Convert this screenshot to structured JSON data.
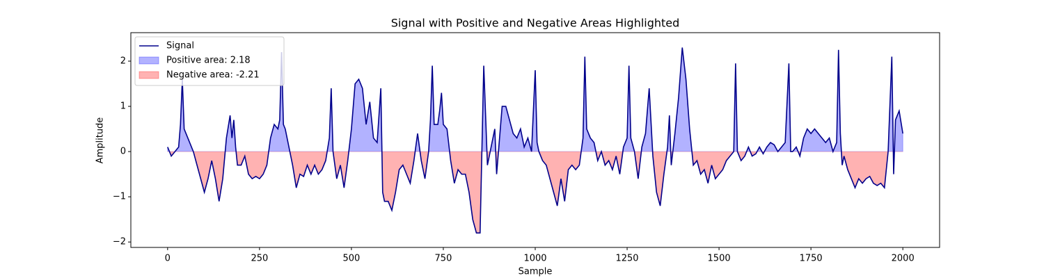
{
  "chart_data": {
    "type": "line",
    "title": "Signal with Positive and Negative Areas Highlighted",
    "x_label": "Sample",
    "y_label": "Amplitude",
    "xlim": [
      -100,
      2100
    ],
    "ylim": [
      -2.12,
      2.63
    ],
    "xticks": [
      0,
      250,
      500,
      750,
      1000,
      1250,
      1500,
      1750,
      2000
    ],
    "yticks": [
      {
        "value": -2,
        "label": "−2"
      },
      {
        "value": -1,
        "label": "−1"
      },
      0,
      1,
      2
    ],
    "legend": "upper left",
    "series": [
      {
        "name": "Signal",
        "color": "#00008b",
        "x": [
          0,
          10,
          20,
          30,
          35,
          40,
          45,
          50,
          60,
          70,
          80,
          90,
          100,
          110,
          120,
          130,
          140,
          150,
          160,
          170,
          175,
          180,
          185,
          190,
          200,
          210,
          220,
          230,
          240,
          250,
          260,
          270,
          280,
          290,
          300,
          305,
          310,
          315,
          320,
          330,
          340,
          350,
          360,
          370,
          380,
          390,
          400,
          410,
          420,
          430,
          440,
          445,
          450,
          460,
          470,
          480,
          490,
          500,
          510,
          520,
          530,
          540,
          550,
          560,
          570,
          580,
          585,
          590,
          600,
          610,
          620,
          630,
          640,
          650,
          660,
          670,
          680,
          690,
          700,
          710,
          715,
          720,
          725,
          735,
          740,
          745,
          750,
          760,
          770,
          780,
          790,
          800,
          810,
          820,
          830,
          840,
          850,
          860,
          870,
          880,
          890,
          895,
          900,
          910,
          920,
          930,
          940,
          950,
          960,
          970,
          980,
          990,
          1000,
          1005,
          1010,
          1020,
          1030,
          1040,
          1050,
          1060,
          1070,
          1080,
          1090,
          1100,
          1110,
          1120,
          1130,
          1135,
          1140,
          1150,
          1160,
          1170,
          1180,
          1190,
          1200,
          1210,
          1220,
          1230,
          1240,
          1250,
          1255,
          1260,
          1270,
          1280,
          1290,
          1300,
          1310,
          1320,
          1330,
          1340,
          1350,
          1360,
          1365,
          1370,
          1380,
          1390,
          1400,
          1410,
          1420,
          1430,
          1440,
          1450,
          1460,
          1470,
          1480,
          1490,
          1500,
          1510,
          1520,
          1530,
          1540,
          1545,
          1550,
          1560,
          1570,
          1580,
          1590,
          1600,
          1610,
          1620,
          1630,
          1640,
          1650,
          1660,
          1670,
          1680,
          1690,
          1695,
          1700,
          1710,
          1720,
          1730,
          1740,
          1750,
          1760,
          1770,
          1780,
          1790,
          1800,
          1810,
          1820,
          1825,
          1830,
          1835,
          1840,
          1850,
          1860,
          1870,
          1880,
          1890,
          1900,
          1910,
          1920,
          1930,
          1940,
          1950,
          1960,
          1970,
          1975,
          1980,
          1990,
          2000
        ],
        "values": [
          0.1,
          -0.1,
          0.0,
          0.1,
          0.6,
          1.6,
          0.5,
          0.4,
          0.2,
          0.0,
          -0.3,
          -0.6,
          -0.9,
          -0.6,
          -0.2,
          -0.6,
          -1.1,
          -0.6,
          0.3,
          0.8,
          0.3,
          0.7,
          0.1,
          -0.3,
          -0.3,
          -0.1,
          -0.5,
          -0.6,
          -0.55,
          -0.6,
          -0.5,
          -0.3,
          0.3,
          0.6,
          0.5,
          0.7,
          2.2,
          0.6,
          0.5,
          0.1,
          -0.3,
          -0.8,
          -0.5,
          -0.55,
          -0.3,
          -0.5,
          -0.3,
          -0.5,
          -0.4,
          -0.2,
          0.3,
          1.4,
          0.0,
          -0.6,
          -0.3,
          -0.8,
          -0.2,
          0.5,
          1.5,
          1.6,
          1.4,
          0.6,
          1.1,
          0.3,
          0.2,
          1.4,
          -0.9,
          -1.1,
          -1.1,
          -1.3,
          -0.9,
          -0.4,
          -0.3,
          -0.5,
          -0.7,
          -0.2,
          0.4,
          -0.2,
          -0.6,
          0.0,
          0.7,
          1.9,
          0.6,
          0.6,
          0.9,
          1.3,
          0.6,
          0.5,
          -0.2,
          -0.7,
          -0.4,
          -0.5,
          -0.5,
          -0.9,
          -1.5,
          -1.8,
          -1.8,
          1.9,
          -0.3,
          0.1,
          0.5,
          -0.5,
          0.0,
          1.0,
          1.0,
          0.7,
          0.4,
          0.3,
          0.5,
          0.1,
          0.3,
          0.0,
          1.8,
          0.2,
          0.0,
          -0.2,
          -0.3,
          -0.6,
          -0.9,
          -1.2,
          -0.6,
          -1.1,
          -0.4,
          -0.3,
          -0.4,
          -0.3,
          0.3,
          2.1,
          0.5,
          0.3,
          0.2,
          -0.2,
          0.0,
          -0.3,
          -0.2,
          -0.4,
          -0.1,
          -0.5,
          0.1,
          0.3,
          1.9,
          0.3,
          0.0,
          -0.6,
          0.1,
          0.4,
          1.4,
          -0.1,
          -0.9,
          -1.2,
          -0.5,
          0.1,
          0.8,
          -0.3,
          0.4,
          1.2,
          2.3,
          1.6,
          0.5,
          -0.3,
          -0.2,
          -0.5,
          -0.4,
          -0.7,
          -0.3,
          -0.6,
          -0.5,
          -0.4,
          -0.2,
          -0.1,
          0.0,
          1.95,
          0.0,
          -0.2,
          -0.1,
          0.1,
          -0.1,
          -0.05,
          0.1,
          -0.05,
          0.1,
          0.2,
          0.15,
          0.0,
          0.1,
          0.2,
          1.95,
          0.0,
          0.0,
          0.1,
          -0.1,
          0.3,
          0.5,
          0.4,
          0.5,
          0.4,
          0.3,
          0.2,
          0.3,
          0.0,
          0.2,
          2.25,
          0.4,
          -0.3,
          -0.1,
          -0.4,
          -0.6,
          -0.8,
          -0.6,
          -0.7,
          -0.6,
          -0.55,
          -0.7,
          -0.75,
          -0.7,
          -0.8,
          0.0,
          2.1,
          -0.5,
          0.7,
          0.9,
          0.4
        ]
      }
    ],
    "fills": [
      {
        "name": "Positive area: 2.18",
        "color": "blue",
        "side": "positive"
      },
      {
        "name": "Negative area: -2.21",
        "color": "red",
        "side": "negative"
      }
    ]
  }
}
